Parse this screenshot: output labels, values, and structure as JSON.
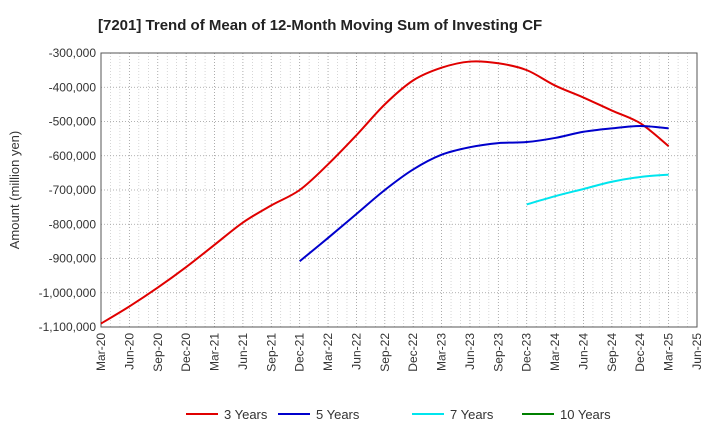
{
  "chart_data": {
    "type": "line",
    "title": "[7201]  Trend of Mean of 12-Month Moving Sum of Investing CF",
    "ylabel": "Amount (million yen)",
    "xlabel": "",
    "ylim": [
      -1100000,
      -300000
    ],
    "y_ticks": [
      -300000,
      -400000,
      -500000,
      -600000,
      -700000,
      -800000,
      -900000,
      -1000000,
      -1100000
    ],
    "y_tick_labels": [
      "-300,000",
      "-400,000",
      "-500,000",
      "-600,000",
      "-700,000",
      "-800,000",
      "-900,000",
      "-1,000,000",
      "-1,100,000"
    ],
    "x_ticks": [
      "Mar-20",
      "Jun-20",
      "Sep-20",
      "Dec-20",
      "Mar-21",
      "Jun-21",
      "Sep-21",
      "Dec-21",
      "Mar-22",
      "Jun-22",
      "Sep-22",
      "Dec-22",
      "Mar-23",
      "Jun-23",
      "Sep-23",
      "Dec-23",
      "Mar-24",
      "Jun-24",
      "Sep-24",
      "Dec-24",
      "Mar-25",
      "Jun-25"
    ],
    "grid": true,
    "legend_position": "bottom",
    "series": [
      {
        "name": "3 Years",
        "color": "#e00000",
        "x": [
          "Mar-20",
          "Jun-20",
          "Sep-20",
          "Dec-20",
          "Mar-21",
          "Jun-21",
          "Sep-21",
          "Dec-21",
          "Mar-22",
          "Jun-22",
          "Sep-22",
          "Dec-22",
          "Mar-23",
          "Jun-23",
          "Sep-23",
          "Dec-23",
          "Mar-24",
          "Jun-24",
          "Sep-24",
          "Dec-24",
          "Mar-25"
        ],
        "values": [
          -1090000,
          -1040000,
          -985000,
          -925000,
          -860000,
          -795000,
          -745000,
          -700000,
          -625000,
          -540000,
          -450000,
          -380000,
          -343000,
          -325000,
          -330000,
          -350000,
          -395000,
          -430000,
          -468000,
          -505000,
          -572000
        ]
      },
      {
        "name": "5 Years",
        "color": "#0000cc",
        "x": [
          "Dec-21",
          "Mar-22",
          "Jun-22",
          "Sep-22",
          "Dec-22",
          "Mar-23",
          "Jun-23",
          "Sep-23",
          "Dec-23",
          "Mar-24",
          "Jun-24",
          "Sep-24",
          "Dec-24",
          "Mar-25"
        ],
        "values": [
          -908000,
          -840000,
          -770000,
          -700000,
          -640000,
          -597000,
          -575000,
          -563000,
          -560000,
          -548000,
          -530000,
          -520000,
          -513000,
          -520000
        ]
      },
      {
        "name": "7 Years",
        "color": "#00e5ee",
        "x": [
          "Dec-23",
          "Mar-24",
          "Jun-24",
          "Sep-24",
          "Dec-24",
          "Mar-25"
        ],
        "values": [
          -742000,
          -718000,
          -697000,
          -676000,
          -662000,
          -655000
        ]
      },
      {
        "name": "10 Years",
        "color": "#008000",
        "x": [],
        "values": []
      }
    ]
  }
}
